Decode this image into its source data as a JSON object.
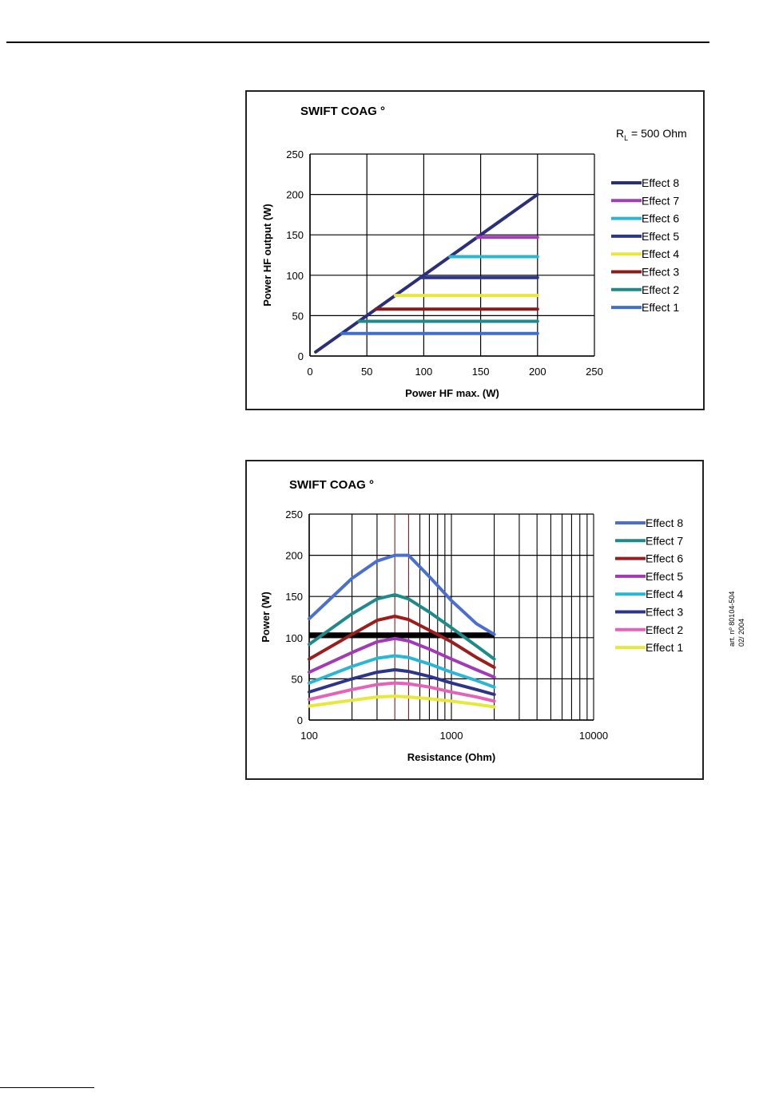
{
  "charts": [
    {
      "type": "line",
      "title": "SWIFT COAG °",
      "annotation": {
        "prefix": "R",
        "sub": "L",
        "suffix": " = 500 Ohm"
      },
      "xlabel": "Power HF max. (W)",
      "ylabel": "Power HF output (W)",
      "xlim": [
        0,
        250
      ],
      "ylim": [
        0,
        250
      ],
      "xticks": [
        0,
        50,
        100,
        150,
        200,
        250
      ],
      "yticks": [
        0,
        50,
        100,
        150,
        200,
        250
      ],
      "grid": true,
      "legend_position": "right",
      "series": [
        {
          "name": "Effect 8",
          "color": "#2b2f7a",
          "points": [
            [
              5,
              5
            ],
            [
              200,
              200
            ]
          ]
        },
        {
          "name": "Effect 7",
          "color": "#a23cb8",
          "points": [
            [
              147,
              147
            ],
            [
              200,
              147
            ]
          ]
        },
        {
          "name": "Effect 6",
          "color": "#2ab7d2",
          "points": [
            [
              123,
              123
            ],
            [
              200,
              123
            ]
          ]
        },
        {
          "name": "Effect 5",
          "color": "#2d3588",
          "points": [
            [
              97,
              97
            ],
            [
              200,
              97
            ]
          ]
        },
        {
          "name": "Effect 4",
          "color": "#e8e83a",
          "points": [
            [
              75,
              75
            ],
            [
              200,
              75
            ]
          ]
        },
        {
          "name": "Effect 3",
          "color": "#8b1a1a",
          "points": [
            [
              58,
              58
            ],
            [
              200,
              58
            ]
          ]
        },
        {
          "name": "Effect 2",
          "color": "#1e8a8a",
          "points": [
            [
              43,
              43
            ],
            [
              200,
              43
            ]
          ]
        },
        {
          "name": "Effect 1",
          "color": "#3c6ed4",
          "points": [
            [
              28,
              28
            ],
            [
              200,
              28
            ]
          ]
        }
      ]
    },
    {
      "type": "line",
      "title": "SWIFT COAG °",
      "xlabel": "Resistance (Ohm)",
      "ylabel": "Power (W)",
      "x_scale": "log",
      "xlim": [
        100,
        10000
      ],
      "ylim": [
        0,
        250
      ],
      "xticks": [
        100,
        1000,
        10000
      ],
      "yticks": [
        0,
        50,
        100,
        150,
        200,
        250
      ],
      "grid": true,
      "legend_position": "right",
      "reference_line": {
        "y": 103,
        "x_from": 100,
        "x_to": 2000,
        "color": "#000000"
      },
      "series": [
        {
          "name": "Effect 8",
          "color": "#4a6fcf",
          "points": [
            [
              100,
              123
            ],
            [
              200,
              172
            ],
            [
              300,
              193
            ],
            [
              400,
              200
            ],
            [
              500,
              200
            ],
            [
              700,
              174
            ],
            [
              1000,
              145
            ],
            [
              1500,
              117
            ],
            [
              2000,
              104
            ]
          ]
        },
        {
          "name": "Effect 7",
          "color": "#1e8a8a",
          "points": [
            [
              100,
              92
            ],
            [
              200,
              129
            ],
            [
              300,
              147
            ],
            [
              400,
              152
            ],
            [
              500,
              147
            ],
            [
              700,
              131
            ],
            [
              1000,
              112
            ],
            [
              1500,
              90
            ],
            [
              2000,
              74
            ]
          ]
        },
        {
          "name": "Effect 6",
          "color": "#9b1d1d",
          "points": [
            [
              100,
              74
            ],
            [
              200,
              104
            ],
            [
              300,
              121
            ],
            [
              400,
              126
            ],
            [
              500,
              122
            ],
            [
              700,
              109
            ],
            [
              1000,
              95
            ],
            [
              1500,
              76
            ],
            [
              2000,
              64
            ]
          ]
        },
        {
          "name": "Effect 5",
          "color": "#a33ab5",
          "points": [
            [
              100,
              58
            ],
            [
              200,
              82
            ],
            [
              300,
              95
            ],
            [
              400,
              99
            ],
            [
              500,
              96
            ],
            [
              700,
              86
            ],
            [
              1000,
              74
            ],
            [
              1500,
              61
            ],
            [
              2000,
              52
            ]
          ]
        },
        {
          "name": "Effect 4",
          "color": "#2ab7d2",
          "points": [
            [
              100,
              45
            ],
            [
              200,
              65
            ],
            [
              300,
              75
            ],
            [
              400,
              78
            ],
            [
              500,
              76
            ],
            [
              700,
              68
            ],
            [
              1000,
              58
            ],
            [
              1500,
              48
            ],
            [
              2000,
              40
            ]
          ]
        },
        {
          "name": "Effect 3",
          "color": "#2d3588",
          "points": [
            [
              100,
              34
            ],
            [
              200,
              50
            ],
            [
              300,
              58
            ],
            [
              400,
              61
            ],
            [
              500,
              59
            ],
            [
              700,
              53
            ],
            [
              1000,
              45
            ],
            [
              1500,
              37
            ],
            [
              2000,
              31
            ]
          ]
        },
        {
          "name": "Effect 2",
          "color": "#e462b8",
          "points": [
            [
              100,
              25
            ],
            [
              200,
              37
            ],
            [
              300,
              43
            ],
            [
              400,
              45
            ],
            [
              500,
              44
            ],
            [
              700,
              40
            ],
            [
              1000,
              34
            ],
            [
              1500,
              28
            ],
            [
              2000,
              23
            ]
          ]
        },
        {
          "name": "Effect 1",
          "color": "#e8e83a",
          "points": [
            [
              100,
              17
            ],
            [
              200,
              24
            ],
            [
              300,
              28
            ],
            [
              400,
              29
            ],
            [
              500,
              28
            ],
            [
              700,
              26
            ],
            [
              1000,
              23
            ],
            [
              1500,
              19
            ],
            [
              2000,
              16
            ]
          ]
        }
      ]
    }
  ],
  "side_note": {
    "line1": "art. nº 80104-504",
    "line2": "02/ 2004"
  }
}
